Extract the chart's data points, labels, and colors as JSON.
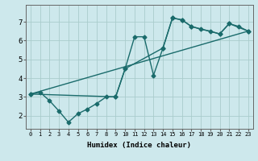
{
  "xlabel": "Humidex (Indice chaleur)",
  "bg_color": "#cde8ec",
  "grid_color": "#aacccc",
  "line_color": "#1a6b6b",
  "markersize": 2.5,
  "linewidth": 1.0,
  "xlim": [
    -0.5,
    23.5
  ],
  "ylim": [
    1.3,
    7.9
  ],
  "xticks": [
    0,
    1,
    2,
    3,
    4,
    5,
    6,
    7,
    8,
    9,
    10,
    11,
    12,
    13,
    14,
    15,
    16,
    17,
    18,
    19,
    20,
    21,
    22,
    23
  ],
  "yticks": [
    2,
    3,
    4,
    5,
    6,
    7
  ],
  "series1_x": [
    0,
    1,
    2,
    3,
    4,
    5,
    6,
    7,
    8,
    9,
    10,
    11,
    12,
    13,
    14,
    15,
    16,
    17,
    18,
    19,
    20,
    21,
    22,
    23
  ],
  "series1_y": [
    3.15,
    3.25,
    2.8,
    2.25,
    1.65,
    2.1,
    2.35,
    2.65,
    3.0,
    3.0,
    4.5,
    6.2,
    6.2,
    4.15,
    5.6,
    7.2,
    7.1,
    6.75,
    6.6,
    6.5,
    6.35,
    6.9,
    6.75,
    6.5
  ],
  "series2_x": [
    0,
    9,
    10,
    14,
    15,
    16,
    17,
    20,
    21,
    23
  ],
  "series2_y": [
    3.15,
    3.0,
    4.5,
    5.6,
    7.2,
    7.1,
    6.75,
    6.35,
    6.9,
    6.5
  ],
  "series3_x": [
    0,
    23
  ],
  "series3_y": [
    3.15,
    6.5
  ]
}
